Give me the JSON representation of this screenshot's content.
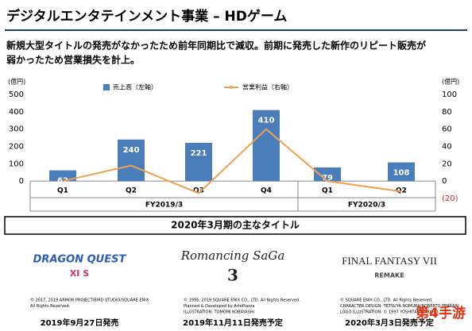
{
  "header": {
    "title": "デジタルエンタテインメント事業 – HDゲーム",
    "subtitle_lines": [
      "新規大型タイトルの発売がなかったため前年同期比で減収。前期に発売した新作のリピート販売が",
      "弱かったため営業損失を計上。"
    ]
  },
  "chart_data": {
    "type": "bar",
    "y_unit": "(億円)",
    "y2_unit": "(億円)",
    "categories": [
      "Q1",
      "Q2",
      "Q3",
      "Q4",
      "Q1",
      "Q2"
    ],
    "group_labels": [
      "FY2019/3",
      "FY2020/3"
    ],
    "series": [
      {
        "name": "売上高（左軸）",
        "type": "bar",
        "color": "#4a7ebb",
        "values": [
          62,
          240,
          221,
          410,
          79,
          108
        ]
      },
      {
        "name": "営業利益（右軸）",
        "type": "line",
        "axis": "y2",
        "color": "#f0a050",
        "values": [
          0,
          18,
          -14,
          60,
          0,
          -12
        ]
      }
    ],
    "ylim": [
      -100,
      500
    ],
    "yticks": [
      0,
      100,
      200,
      300,
      400,
      500
    ],
    "y2lim": [
      -20,
      100
    ],
    "y2ticks": [
      {
        "value": -20,
        "label": "(20)"
      },
      0,
      20,
      40,
      60,
      80,
      100
    ],
    "grid": false
  },
  "titles": {
    "heading": "2020年3月期の主なタイトル",
    "items": [
      {
        "logo": [
          "DRAGON QUEST",
          "XI S"
        ],
        "copyright": [
          "© 2017, 2019 ARMOR PROJECT/BIRD STUDIO/SQUARE ENIX",
          "All Rights Reserved."
        ],
        "date": "2019年9月27日発売"
      },
      {
        "logo": [
          "Romancing SaGa",
          "3"
        ],
        "copyright": [
          "© 1995, 2019 SQUARE ENIX CO., LTD. All Rights Reserved.",
          "Planned & Developed by ArtePiazza",
          "ILLUSTRATION: TOMOMI KOBAYASHI"
        ],
        "date": "2019年11月11日発売予定"
      },
      {
        "logo": [
          "FINAL FANTASY VII",
          "REMAKE"
        ],
        "copyright": [
          "© SQUARE ENIX CO., LTD. All Rights Reserved.",
          "CHARACTER DESIGN: TETSUYA NOMURA/ROBERTO FERRARI",
          "LOGO ILLUSTRATION: © 1997 YOSHITAKA AMANO"
        ],
        "date": "2020年3月3日発売予定"
      }
    ]
  },
  "watermark": "第4手游"
}
